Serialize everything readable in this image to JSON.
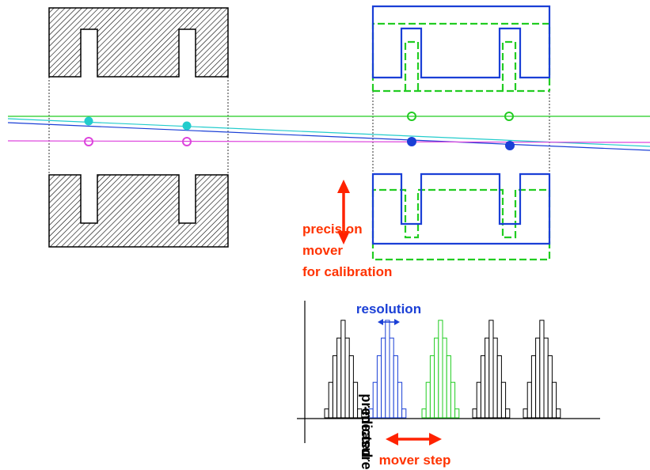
{
  "labels": {
    "mover_line1": "precision",
    "mover_line2": "mover",
    "mover_line3": "for calibration",
    "resolution": "resolution",
    "y_axis_line1": "predicted",
    "y_axis_line2": "-measured",
    "mover_step": "mover step"
  },
  "colors": {
    "detector": "#000000",
    "hatch": "#000000",
    "blue": "#1a3fd6",
    "green": "#22cc22",
    "cyan": "#22cccc",
    "magenta": "#dd44dd",
    "arrow_red": "#ff2200",
    "label_red": "#ff3300",
    "label_blue": "#1a3fd6"
  },
  "histograms": [
    {
      "color": "black",
      "heights": [
        1,
        4,
        7,
        9,
        11,
        9,
        7,
        4,
        1
      ]
    },
    {
      "color": "blue",
      "heights": [
        1,
        4,
        7,
        9,
        11,
        9,
        7,
        4,
        1
      ]
    },
    {
      "color": "green",
      "heights": [
        1,
        4,
        7,
        9,
        11,
        9,
        7,
        4,
        1
      ]
    },
    {
      "color": "black",
      "heights": [
        1,
        4,
        7,
        9,
        11,
        9,
        7,
        4,
        1
      ]
    },
    {
      "color": "black",
      "heights": [
        1,
        4,
        7,
        9,
        11,
        9,
        7,
        4,
        1
      ]
    }
  ]
}
